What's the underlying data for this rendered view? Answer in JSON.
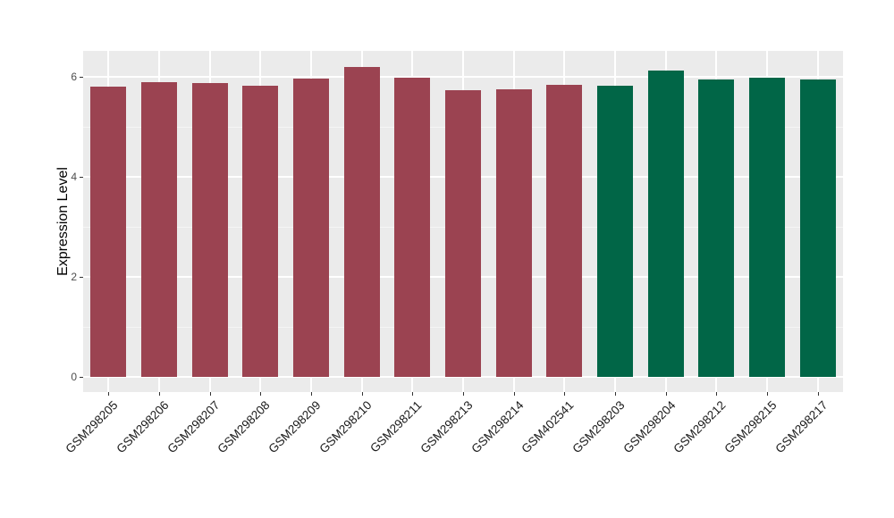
{
  "chart_data": {
    "type": "bar",
    "title": "",
    "xlabel": "",
    "ylabel": "Expression Level",
    "categories": [
      "GSM298205",
      "GSM298206",
      "GSM298207",
      "GSM298208",
      "GSM298209",
      "GSM298210",
      "GSM298211",
      "GSM298213",
      "GSM298214",
      "GSM402541",
      "GSM298203",
      "GSM298204",
      "GSM298212",
      "GSM298215",
      "GSM298217"
    ],
    "values": [
      5.81,
      5.9,
      5.88,
      5.83,
      5.96,
      6.19,
      5.98,
      5.74,
      5.75,
      5.84,
      5.82,
      6.12,
      5.95,
      5.99,
      5.95
    ],
    "bar_colors": [
      "#9B4351",
      "#9B4351",
      "#9B4351",
      "#9B4351",
      "#9B4351",
      "#9B4351",
      "#9B4351",
      "#9B4351",
      "#9B4351",
      "#9B4351",
      "#016647",
      "#016647",
      "#016647",
      "#016647",
      "#016647"
    ],
    "palette": {
      "group_red": "#9B4351",
      "group_green": "#016647"
    },
    "y_ticks": [
      0,
      2,
      4,
      6
    ],
    "y_minor_ticks": [
      1,
      3,
      5
    ],
    "ylim": [
      -0.3,
      6.52
    ],
    "grid": true,
    "legend_position": "none",
    "panel_bg": "#EBEBEB",
    "grid_major_color": "#FFFFFF",
    "grid_minor_color": "#F5F5F5",
    "x_labels_angle_deg": 45
  }
}
